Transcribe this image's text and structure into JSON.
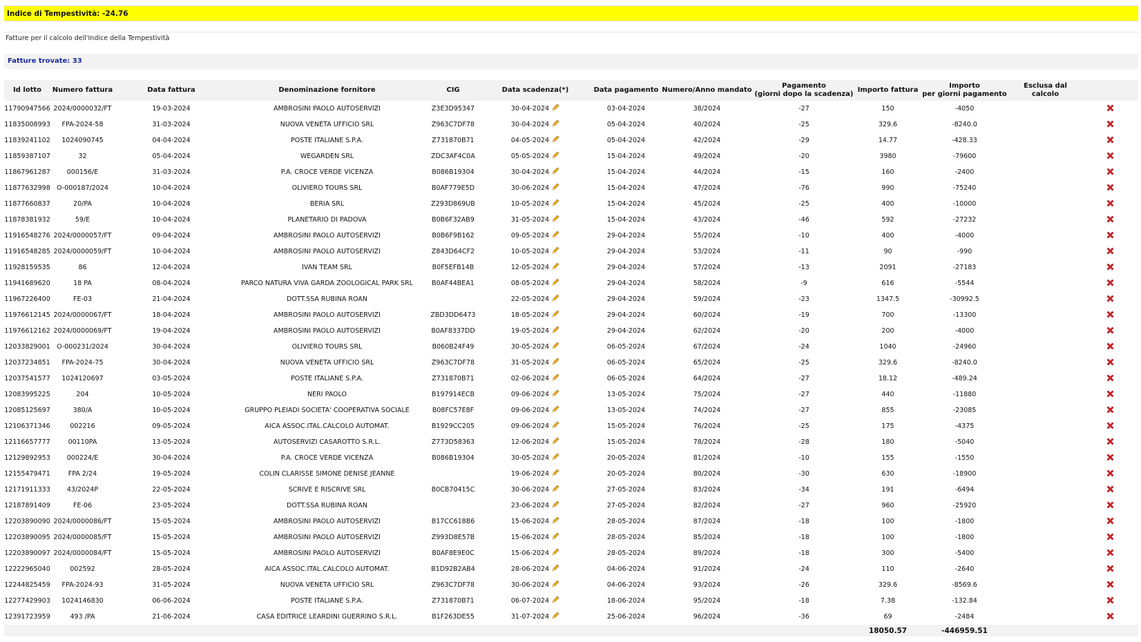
{
  "header": {
    "title": "Indice di Tempestività: -24.76",
    "subtitle": "Fatture per il calcolo dell'Indice della Tempestività",
    "found": "Fatture trovate: 33"
  },
  "table": {
    "headers": [
      "Id lotto",
      "Numero fattura",
      "Data fattura",
      "Denominazione fornitore",
      "CIG",
      "Data scadenza(*)",
      "Data pagamento",
      "Numero/Anno mandato",
      "Pagamento\n(giorni dopo la scadenza)",
      "Importo fattura",
      "Importo\nper giorni pagamento",
      "Esclusa dal calcolo"
    ],
    "rows": [
      [
        "11790947566",
        "2024/0000032/FT",
        "19-03-2024",
        "AMBROSINI PAOLO AUTOSERVIZI",
        "Z3E3D95347",
        "30-04-2024",
        "03-04-2024",
        "38/2024",
        "-27",
        "150",
        "-4050"
      ],
      [
        "11835008993",
        "FPA-2024-58",
        "31-03-2024",
        "NUOVA VENETA UFFICIO SRL",
        "Z963C7DF78",
        "30-04-2024",
        "05-04-2024",
        "40/2024",
        "-25",
        "329.6",
        "-8240.0"
      ],
      [
        "11839241102",
        "1024090745",
        "04-04-2024",
        "POSTE ITALIANE S.P.A.",
        "Z731870B71",
        "04-05-2024",
        "05-04-2024",
        "42/2024",
        "-29",
        "14.77",
        "-428.33"
      ],
      [
        "11859387107",
        "32",
        "05-04-2024",
        "WEGARDEN SRL",
        "ZDC3AF4C0A",
        "05-05-2024",
        "15-04-2024",
        "49/2024",
        "-20",
        "3980",
        "-79600"
      ],
      [
        "11867961287",
        "000156/E",
        "31-03-2024",
        "P.A. CROCE VERDE VICENZA",
        "B086B19304",
        "30-04-2024",
        "15-04-2024",
        "44/2024",
        "-15",
        "160",
        "-2400"
      ],
      [
        "11877632998",
        "O-000187/2024",
        "10-04-2024",
        "OLIVIERO TOURS SRL",
        "B0AF779E5D",
        "30-06-2024",
        "15-04-2024",
        "47/2024",
        "-76",
        "990",
        "-75240"
      ],
      [
        "11877660837",
        "20/PA",
        "10-04-2024",
        "BERIA SRL",
        "Z293D869UB",
        "10-05-2024",
        "15-04-2024",
        "45/2024",
        "-25",
        "400",
        "-10000"
      ],
      [
        "11878381932",
        "59/E",
        "10-04-2024",
        "PLANETARIO DI PADOVA",
        "B0B6F32AB9",
        "31-05-2024",
        "15-04-2024",
        "43/2024",
        "-46",
        "592",
        "-27232"
      ],
      [
        "11916548276",
        "2024/0000057/FT",
        "09-04-2024",
        "AMBROSINI PAOLO AUTOSERVIZI",
        "B0B6F9B162",
        "09-05-2024",
        "29-04-2024",
        "55/2024",
        "-10",
        "400",
        "-4000"
      ],
      [
        "11916548285",
        "2024/0000059/FT",
        "10-04-2024",
        "AMBROSINI PAOLO AUTOSERVIZI",
        "Z843D64CF2",
        "10-05-2024",
        "29-04-2024",
        "53/2024",
        "-11",
        "90",
        "-990"
      ],
      [
        "11928159535",
        "86",
        "12-04-2024",
        "IVAN TEAM SRL",
        "B0F5EFB14B",
        "12-05-2024",
        "29-04-2024",
        "57/2024",
        "-13",
        "2091",
        "-27183"
      ],
      [
        "11941689620",
        "18 PA",
        "08-04-2024",
        "PARCO NATURA VIVA GARDA ZOOLOGICAL PARK SRL",
        "B0AF44BEA1",
        "08-05-2024",
        "29-04-2024",
        "58/2024",
        "-9",
        "616",
        "-5544"
      ],
      [
        "11967226400",
        "FE-03",
        "21-04-2024",
        "DOTT.SSA RUBINA ROAN",
        null,
        "22-05-2024",
        "29-04-2024",
        "59/2024",
        "-23",
        "1347.5",
        "-30992.5"
      ],
      [
        "11976612145",
        "2024/0000067/FT",
        "18-04-2024",
        "AMBROSINI PAOLO AUTOSERVIZI",
        "ZBD3DD6473",
        "18-05-2024",
        "29-04-2024",
        "60/2024",
        "-19",
        "700",
        "-13300"
      ],
      [
        "11976612162",
        "2024/0000069/FT",
        "19-04-2024",
        "AMBROSINI PAOLO AUTOSERVIZI",
        "B0AF8337DD",
        "19-05-2024",
        "29-04-2024",
        "62/2024",
        "-20",
        "200",
        "-4000"
      ],
      [
        "12033829001",
        "O-000231/2024",
        "30-04-2024",
        "OLIVIERO TOURS SRL",
        "B060B24F49",
        "30-05-2024",
        "06-05-2024",
        "67/2024",
        "-24",
        "1040",
        "-24960"
      ],
      [
        "12037234851",
        "FPA-2024-75",
        "30-04-2024",
        "NUOVA VENETA UFFICIO SRL",
        "Z963C7DF78",
        "31-05-2024",
        "06-05-2024",
        "65/2024",
        "-25",
        "329.6",
        "-8240.0"
      ],
      [
        "12037541577",
        "1024120697",
        "03-05-2024",
        "POSTE ITALIANE S.P.A.",
        "Z731870B71",
        "02-06-2024",
        "06-05-2024",
        "64/2024",
        "-27",
        "18.12",
        "-489.24"
      ],
      [
        "12083995225",
        "204",
        "10-05-2024",
        "NERI PAOLO",
        "B197914ECB",
        "09-06-2024",
        "13-05-2024",
        "75/2024",
        "-27",
        "440",
        "-11880"
      ],
      [
        "12085125697",
        "380/A",
        "10-05-2024",
        "GRUPPO PLEIADI SOCIETA' COOPERATIVA SOCIALE",
        "B08FC57E8F",
        "09-06-2024",
        "13-05-2024",
        "74/2024",
        "-27",
        "855",
        "-23085"
      ],
      [
        "12106371346",
        "002216",
        "09-05-2024",
        "AICA ASSOC.ITAL.CALCOLO AUTOMAT.",
        "B1929CC205",
        "09-06-2024",
        "15-05-2024",
        "76/2024",
        "-25",
        "175",
        "-4375"
      ],
      [
        "12116657777",
        "00110PA",
        "13-05-2024",
        "AUTOSERVIZI CASAROTTO S.R.L.",
        "Z773D58363",
        "12-06-2024",
        "15-05-2024",
        "78/2024",
        "-28",
        "180",
        "-5040"
      ],
      [
        "12129892953",
        "000224/E",
        "30-04-2024",
        "P.A. CROCE VERDE VICENZA",
        "B086B19304",
        "30-05-2024",
        "20-05-2024",
        "81/2024",
        "-10",
        "155",
        "-1550"
      ],
      [
        "12155479471",
        "FPA 2/24",
        "19-05-2024",
        "COLIN CLARISSE SIMONE DENISE JEANNE",
        null,
        "19-06-2024",
        "20-05-2024",
        "80/2024",
        "-30",
        "630",
        "-18900"
      ],
      [
        "12171911333",
        "43/2024P",
        "22-05-2024",
        "SCRIVE E RISCRIVE SRL",
        "B0CB70415C",
        "30-06-2024",
        "27-05-2024",
        "83/2024",
        "-34",
        "191",
        "-6494"
      ],
      [
        "12187891409",
        "FE-06",
        "23-05-2024",
        "DOTT.SSA RUBINA ROAN",
        null,
        "23-06-2024",
        "27-05-2024",
        "82/2024",
        "-27",
        "960",
        "-25920"
      ],
      [
        "12203890090",
        "2024/0000086/FT",
        "15-05-2024",
        "AMBROSINI PAOLO AUTOSERVIZI",
        "B17CC618B6",
        "15-06-2024",
        "28-05-2024",
        "87/2024",
        "-18",
        "100",
        "-1800"
      ],
      [
        "12203890095",
        "2024/0000085/FT",
        "15-05-2024",
        "AMBROSINI PAOLO AUTOSERVIZI",
        "Z993D8E57B",
        "15-06-2024",
        "28-05-2024",
        "85/2024",
        "-18",
        "100",
        "-1800"
      ],
      [
        "12203890097",
        "2024/0000084/FT",
        "15-05-2024",
        "AMBROSINI PAOLO AUTOSERVIZI",
        "B0AF8E9E0C",
        "15-06-2024",
        "28-05-2024",
        "89/2024",
        "-18",
        "300",
        "-5400"
      ],
      [
        "12222965040",
        "002592",
        "28-05-2024",
        "AICA ASSOC.ITAL.CALCOLO AUTOMAT.",
        "B1D92B2AB4",
        "28-06-2024",
        "04-06-2024",
        "91/2024",
        "-24",
        "110",
        "-2640"
      ],
      [
        "12244825459",
        "FPA-2024-93",
        "31-05-2024",
        "NUOVA VENETA UFFICIO SRL",
        "Z963C7DF78",
        "30-06-2024",
        "04-06-2024",
        "93/2024",
        "-26",
        "329.6",
        "-8569.6"
      ],
      [
        "12277429903",
        "1024146830",
        "06-06-2024",
        "POSTE ITALIANE S.P.A.",
        "Z731870B71",
        "06-07-2024",
        "18-06-2024",
        "95/2024",
        "-18",
        "7.38",
        "-132.84"
      ],
      [
        "12391723959",
        "493 /PA",
        "21-06-2024",
        "CASA EDITRICE LEARDINI GUERRINO S.R.L.",
        "B1F263DE55",
        "31-07-2024",
        "25-06-2024",
        "96/2024",
        "-36",
        "69",
        "-2484"
      ]
    ],
    "totals": {
      "importo_fattura": "18050.57",
      "importo_giorni": "-446959.51"
    }
  }
}
